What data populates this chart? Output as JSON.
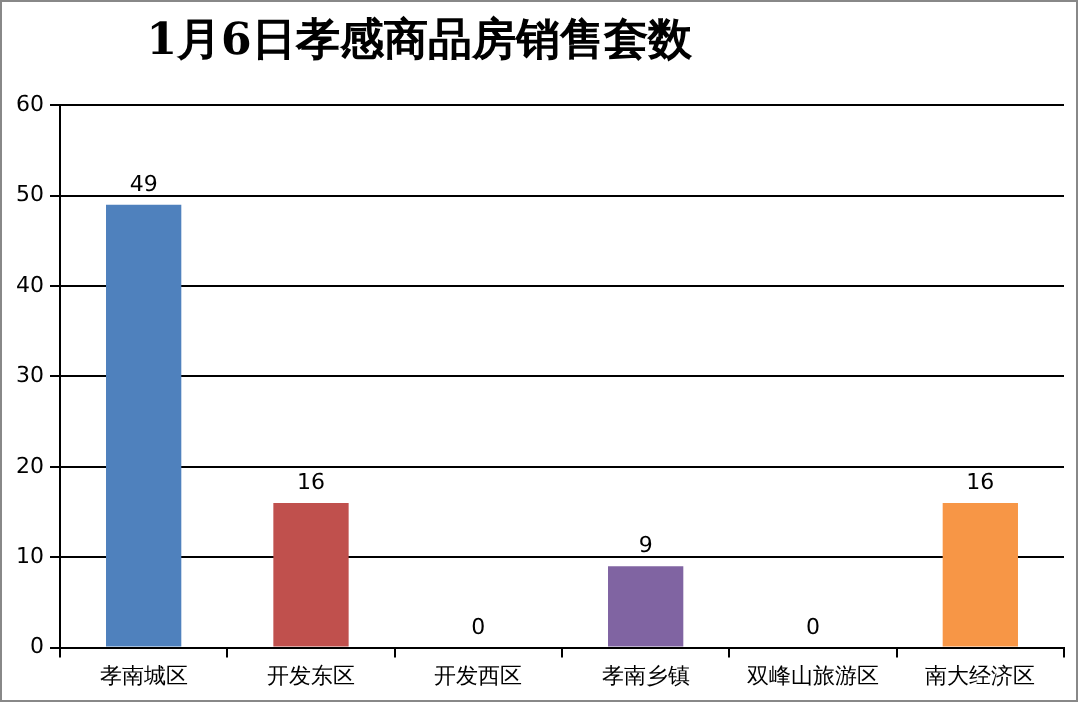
{
  "chart_data": {
    "type": "bar",
    "title": "1月6日孝感商品房销售套数",
    "categories": [
      "孝南城区",
      "开发东区",
      "开发西区",
      "孝南乡镇",
      "双峰山旅游区",
      "南大经济区"
    ],
    "values": [
      49,
      16,
      0,
      9,
      0,
      16
    ],
    "colors": [
      "#4f81bd",
      "#c0504d",
      "#9bbb59",
      "#8064a2",
      "#4bacc6",
      "#f79646"
    ],
    "ylim": [
      0,
      60
    ],
    "yticks": [
      0,
      10,
      20,
      30,
      40,
      50,
      60
    ],
    "grid": "y",
    "data_labels": true,
    "legend": false
  }
}
